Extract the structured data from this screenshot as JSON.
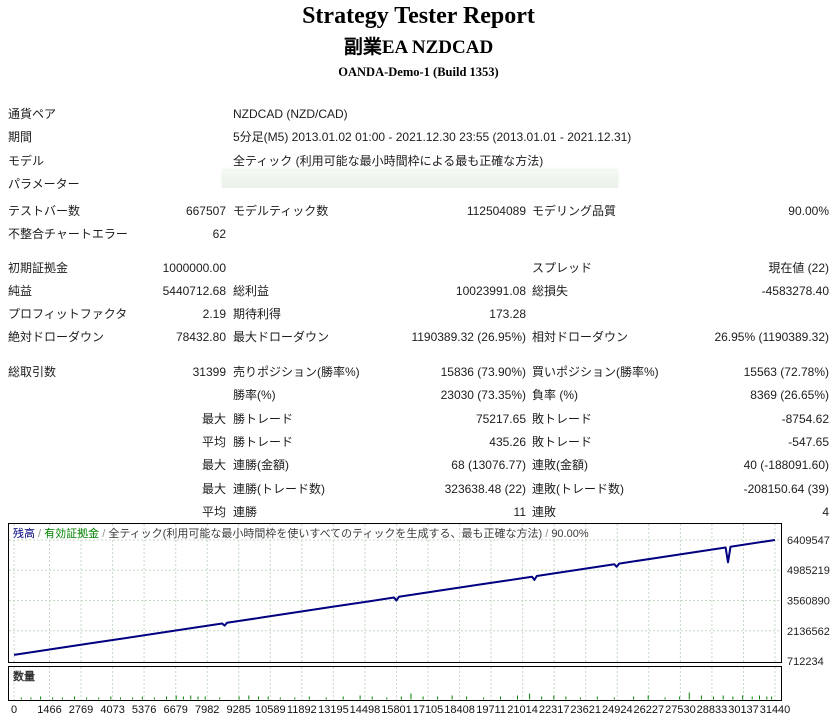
{
  "header": {
    "title": "Strategy Tester Report",
    "ea_name": "副業EA NZDCAD",
    "server": "OANDA-Demo-1 (Build 1353)"
  },
  "info_rows": [
    {
      "label": "通貨ペア",
      "value": "NZDCAD (NZD/CAD)",
      "redacted": false
    },
    {
      "label": "期間",
      "value": "5分足(M5) 2013.01.02 01:00 - 2021.12.30 23:55 (2013.01.01 - 2021.12.31)",
      "redacted": false
    },
    {
      "label": "モデル",
      "value": "全ティック (利用可能な最小時間枠による最も正確な方法)",
      "redacted": false
    },
    {
      "label": "パラメーター",
      "value": "",
      "redacted": true
    }
  ],
  "stat_rows": [
    [
      "テストバー数",
      "667507",
      "モデルティック数",
      "112504089",
      "モデリング品質",
      "90.00%"
    ],
    [
      "不整合チャートエラー",
      "62",
      "",
      "",
      "",
      ""
    ],
    [
      "初期証拠金",
      "1000000.00",
      "",
      "",
      "スプレッド",
      "現在値 (22)"
    ],
    [
      "純益",
      "5440712.68",
      "総利益",
      "10023991.08",
      "総損失",
      "-4583278.40"
    ],
    [
      "プロフィットファクタ",
      "2.19",
      "期待利得",
      "173.28",
      "",
      ""
    ],
    [
      "絶対ドローダウン",
      "78432.80",
      "最大ドローダウン",
      "1190389.32 (26.95%)",
      "相対ドローダウン",
      "26.95% (1190389.32)"
    ],
    [
      "総取引数",
      "31399",
      "売りポジション(勝率%)",
      "15836 (73.90%)",
      "買いポジション(勝率%)",
      "15563 (72.78%)"
    ],
    [
      "",
      "",
      "勝率(%)",
      "23030 (73.35%)",
      "負率 (%)",
      "8369 (26.65%)"
    ],
    [
      "",
      "最大",
      "勝トレード",
      "75217.65",
      "敗トレード",
      "-8754.62"
    ],
    [
      "",
      "平均",
      "勝トレード",
      "435.26",
      "敗トレード",
      "-547.65"
    ],
    [
      "",
      "最大",
      "連勝(金額)",
      "68 (13076.77)",
      "連敗(金額)",
      "40 (-188091.60)"
    ],
    [
      "",
      "最大",
      "連勝(トレード数)",
      "323638.48 (22)",
      "連敗(トレード数)",
      "-208150.64 (39)"
    ],
    [
      "",
      "平均",
      "連勝",
      "11",
      "連敗",
      "4"
    ]
  ],
  "chart_data": {
    "type": "line",
    "legend_parts": [
      {
        "text": "残高",
        "color": "#000080"
      },
      {
        "text": " / ",
        "color": "#909090"
      },
      {
        "text": "有効証拠金",
        "color": "#008000"
      },
      {
        "text": " / ",
        "color": "#909090"
      },
      {
        "text": "全ティック(利用可能な最小時間枠を使いすべてのティックを生成する、最も正確な方法)",
        "color": "#3c3c3c"
      },
      {
        "text": " / ",
        "color": "#909090"
      },
      {
        "text": "90.00%",
        "color": "#3c3c3c"
      }
    ],
    "volume_panel_label": "数量",
    "x_ticks": [
      0,
      1466,
      2769,
      4073,
      5376,
      6679,
      7982,
      9285,
      10589,
      11892,
      13195,
      14498,
      15801,
      17105,
      18408,
      19711,
      21014,
      22317,
      23621,
      24924,
      26227,
      27530,
      28833,
      30137,
      31440
    ],
    "y_ticks": [
      712234,
      2136562,
      3560890,
      4985219,
      6409547
    ],
    "x_range": [
      0,
      31440
    ],
    "y_range": [
      712234,
      6409547
    ],
    "grid": true,
    "line_color": "#000080",
    "grid_color": "#c4d8c4",
    "volume_color": "#008000",
    "series": [
      {
        "name": "残高",
        "points": [
          [
            0,
            1000000
          ],
          [
            1500,
            1258000
          ],
          [
            3000,
            1516000
          ],
          [
            4500,
            1774000
          ],
          [
            6000,
            2032000
          ],
          [
            7500,
            2290000
          ],
          [
            8600,
            2479000
          ],
          [
            8700,
            2380000
          ],
          [
            8800,
            2513000
          ],
          [
            10300,
            2772000
          ],
          [
            11800,
            3030000
          ],
          [
            13300,
            3288000
          ],
          [
            14700,
            3529000
          ],
          [
            15700,
            3701000
          ],
          [
            15800,
            3560000
          ],
          [
            15900,
            3735000
          ],
          [
            17400,
            3993000
          ],
          [
            18900,
            4251000
          ],
          [
            20400,
            4509000
          ],
          [
            21400,
            4681000
          ],
          [
            21500,
            4530000
          ],
          [
            21600,
            4715000
          ],
          [
            23100,
            4973000
          ],
          [
            24600,
            5231000
          ],
          [
            24800,
            5266000
          ],
          [
            24900,
            5150000
          ],
          [
            25000,
            5300000
          ],
          [
            26500,
            5558000
          ],
          [
            28000,
            5816000
          ],
          [
            29400,
            6057000
          ],
          [
            29500,
            5360000
          ],
          [
            29600,
            6091000
          ],
          [
            31000,
            6332000
          ],
          [
            31440,
            6409547
          ]
        ]
      }
    ],
    "volume_bars": [
      [
        300,
        2
      ],
      [
        700,
        2
      ],
      [
        1100,
        3
      ],
      [
        1600,
        2
      ],
      [
        2000,
        2
      ],
      [
        2500,
        3
      ],
      [
        3000,
        2
      ],
      [
        3500,
        2
      ],
      [
        4000,
        3
      ],
      [
        4400,
        2
      ],
      [
        4900,
        2
      ],
      [
        5300,
        3
      ],
      [
        5800,
        2
      ],
      [
        6300,
        3
      ],
      [
        6700,
        4
      ],
      [
        7000,
        3
      ],
      [
        7300,
        4
      ],
      [
        7600,
        3
      ],
      [
        7900,
        3
      ],
      [
        8500,
        2
      ],
      [
        9300,
        3
      ],
      [
        9700,
        4
      ],
      [
        10100,
        3
      ],
      [
        10500,
        3
      ],
      [
        11000,
        2
      ],
      [
        11600,
        2
      ],
      [
        12200,
        3
      ],
      [
        12900,
        2
      ],
      [
        13600,
        3
      ],
      [
        14300,
        4
      ],
      [
        14800,
        3
      ],
      [
        15400,
        2
      ],
      [
        16000,
        3
      ],
      [
        16400,
        6
      ],
      [
        16900,
        3
      ],
      [
        17500,
        3
      ],
      [
        18100,
        4
      ],
      [
        18700,
        3
      ],
      [
        19400,
        2
      ],
      [
        20100,
        3
      ],
      [
        20800,
        4
      ],
      [
        21300,
        6
      ],
      [
        21800,
        3
      ],
      [
        22300,
        4
      ],
      [
        22800,
        3
      ],
      [
        23400,
        2
      ],
      [
        24100,
        3
      ],
      [
        24800,
        2
      ],
      [
        25600,
        3
      ],
      [
        26200,
        4
      ],
      [
        26900,
        2
      ],
      [
        27500,
        3
      ],
      [
        27900,
        7
      ],
      [
        28400,
        4
      ],
      [
        28900,
        3
      ],
      [
        29300,
        4
      ],
      [
        29700,
        3
      ],
      [
        30100,
        4
      ],
      [
        30500,
        3
      ],
      [
        30800,
        4
      ],
      [
        31100,
        3
      ],
      [
        31300,
        3
      ]
    ]
  }
}
